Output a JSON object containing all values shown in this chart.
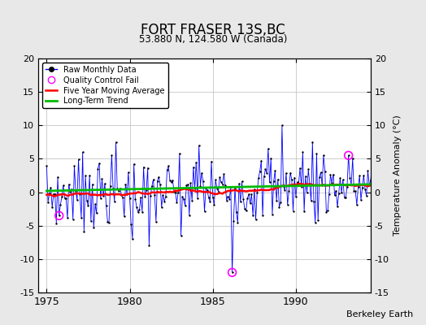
{
  "title": "FORT FRASER 13S,BC",
  "subtitle": "53.880 N, 124.580 W (Canada)",
  "ylabel": "Temperature Anomaly (°C)",
  "xlabel_credit": "Berkeley Earth",
  "ylim": [
    -15,
    20
  ],
  "xlim": [
    1974.5,
    1994.5
  ],
  "xticks": [
    1975,
    1980,
    1985,
    1990
  ],
  "yticks": [
    -15,
    -10,
    -5,
    0,
    5,
    10,
    15,
    20
  ],
  "bg_color": "#e8e8e8",
  "plot_bg_color": "#ffffff",
  "raw_color": "#0000ff",
  "moving_avg_color": "#ff0000",
  "trend_color": "#00bb00",
  "qc_fail_color": "#ff00ff",
  "start_year": 1975,
  "end_year": 1994
}
